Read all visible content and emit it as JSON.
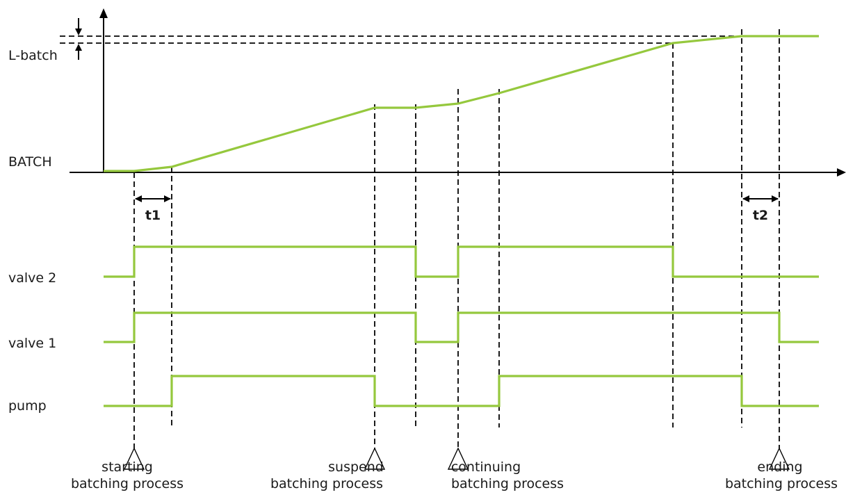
{
  "axis_labels": {
    "l_batch": "L-batch",
    "batch": "BATCH"
  },
  "signal_labels": {
    "valve2": "valve 2",
    "valve1": "valve 1",
    "pump": "pump"
  },
  "intervals": {
    "t1": "t1",
    "t2": "t2"
  },
  "events": [
    {
      "line1": "starting",
      "line2": "batching process"
    },
    {
      "line1": "suspend",
      "line2": "batching process"
    },
    {
      "line1": "continuing",
      "line2": "batching process"
    },
    {
      "line1": "ending",
      "line2": "batching process"
    }
  ],
  "colors": {
    "signal": "#95c83d",
    "axis": "#000000"
  }
}
